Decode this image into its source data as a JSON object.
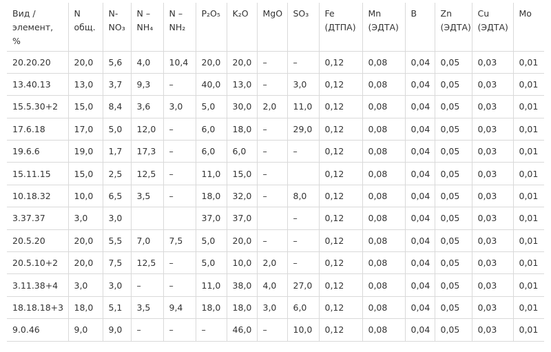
{
  "table": {
    "headers": [
      [
        "Вид  /",
        "элемент,",
        "%"
      ],
      [
        "N",
        "общ."
      ],
      [
        "N-",
        "NO₃"
      ],
      [
        "N –",
        "NH₄"
      ],
      [
        "N –",
        "NH₂"
      ],
      [
        "P₂O₅"
      ],
      [
        "K₂O"
      ],
      [
        "MgO"
      ],
      [
        "SO₃"
      ],
      [
        "Fe",
        "(ДТПА)"
      ],
      [
        "Mn",
        "(ЭДТА)"
      ],
      [
        "B"
      ],
      [
        "Zn",
        "(ЭДТА)"
      ],
      [
        "Cu",
        "(ЭДТА)"
      ],
      [
        "Mo"
      ]
    ],
    "rows": [
      [
        "20.20.20",
        "20,0",
        "5,6",
        "4,0",
        "10,4",
        "20,0",
        "20,0",
        "–",
        "–",
        "0,12",
        "0,08",
        "0,04",
        "0,05",
        "0,03",
        "0,01"
      ],
      [
        "13.40.13",
        "13,0",
        "3,7",
        "9,3",
        "–",
        "40,0",
        "13,0",
        "–",
        "3,0",
        "0,12",
        "0,08",
        "0,04",
        "0,05",
        "0,03",
        "0,01"
      ],
      [
        "15.5.30+2",
        "15,0",
        "8,4",
        "3,6",
        "3,0",
        "5,0",
        "30,0",
        "2,0",
        "11,0",
        "0,12",
        "0,08",
        "0,04",
        "0,05",
        "0,03",
        "0,01"
      ],
      [
        "17.6.18",
        "17,0",
        "5,0",
        "12,0",
        "–",
        "6,0",
        "18,0",
        "–",
        "29,0",
        "0,12",
        "0,08",
        "0,04",
        "0,05",
        "0,03",
        "0,01"
      ],
      [
        "19.6.6",
        "19,0",
        "1,7",
        "17,3",
        "–",
        "6,0",
        "6,0",
        "–",
        "–",
        "0,12",
        "0,08",
        "0,04",
        "0,05",
        "0,03",
        "0,01"
      ],
      [
        "15.11.15",
        "15,0",
        "2,5",
        "12,5",
        "–",
        "11,0",
        "15,0",
        "–",
        "",
        "0,12",
        "0,08",
        "0,04",
        "0,05",
        "0,03",
        "0,01"
      ],
      [
        "10.18.32",
        "10,0",
        "6,5",
        "3,5",
        "–",
        "18,0",
        "32,0",
        "–",
        "8,0",
        "0,12",
        "0,08",
        "0,04",
        "0,05",
        "0,03",
        "0,01"
      ],
      [
        "3.37.37",
        "3,0",
        "3,0",
        "",
        "",
        "37,0",
        "37,0",
        "",
        "–",
        "0,12",
        "0,08",
        "0,04",
        "0,05",
        "0,03",
        "0,01"
      ],
      [
        "20.5.20",
        "20,0",
        "5,5",
        "7,0",
        "7,5",
        "5,0",
        "20,0",
        "–",
        "–",
        "0,12",
        "0,08",
        "0,04",
        "0,05",
        "0,03",
        "0,01"
      ],
      [
        "20.5.10+2",
        "20,0",
        "7,5",
        "12,5",
        "–",
        "5,0",
        "10,0",
        "2,0",
        "–",
        "0,12",
        "0,08",
        "0,04",
        "0,05",
        "0,03",
        "0,01"
      ],
      [
        "3.11.38+4",
        "3,0",
        "3,0",
        "–",
        "–",
        "11,0",
        "38,0",
        "4,0",
        "27,0",
        "0,12",
        "0,08",
        "0,04",
        "0,05",
        "0,03",
        "0,01"
      ],
      [
        "18.18.18+3",
        "18,0",
        "5,1",
        "3,5",
        "9,4",
        "18,0",
        "18,0",
        "3,0",
        "6,0",
        "0,12",
        "0,08",
        "0,04",
        "0,05",
        "0,03",
        "0,01"
      ],
      [
        "9.0.46",
        "9,0",
        "9,0",
        "–",
        "–",
        "–",
        "46,0",
        "–",
        "10,0",
        "0,12",
        "0,08",
        "0,04",
        "0,05",
        "0,03",
        "0,01"
      ]
    ]
  }
}
